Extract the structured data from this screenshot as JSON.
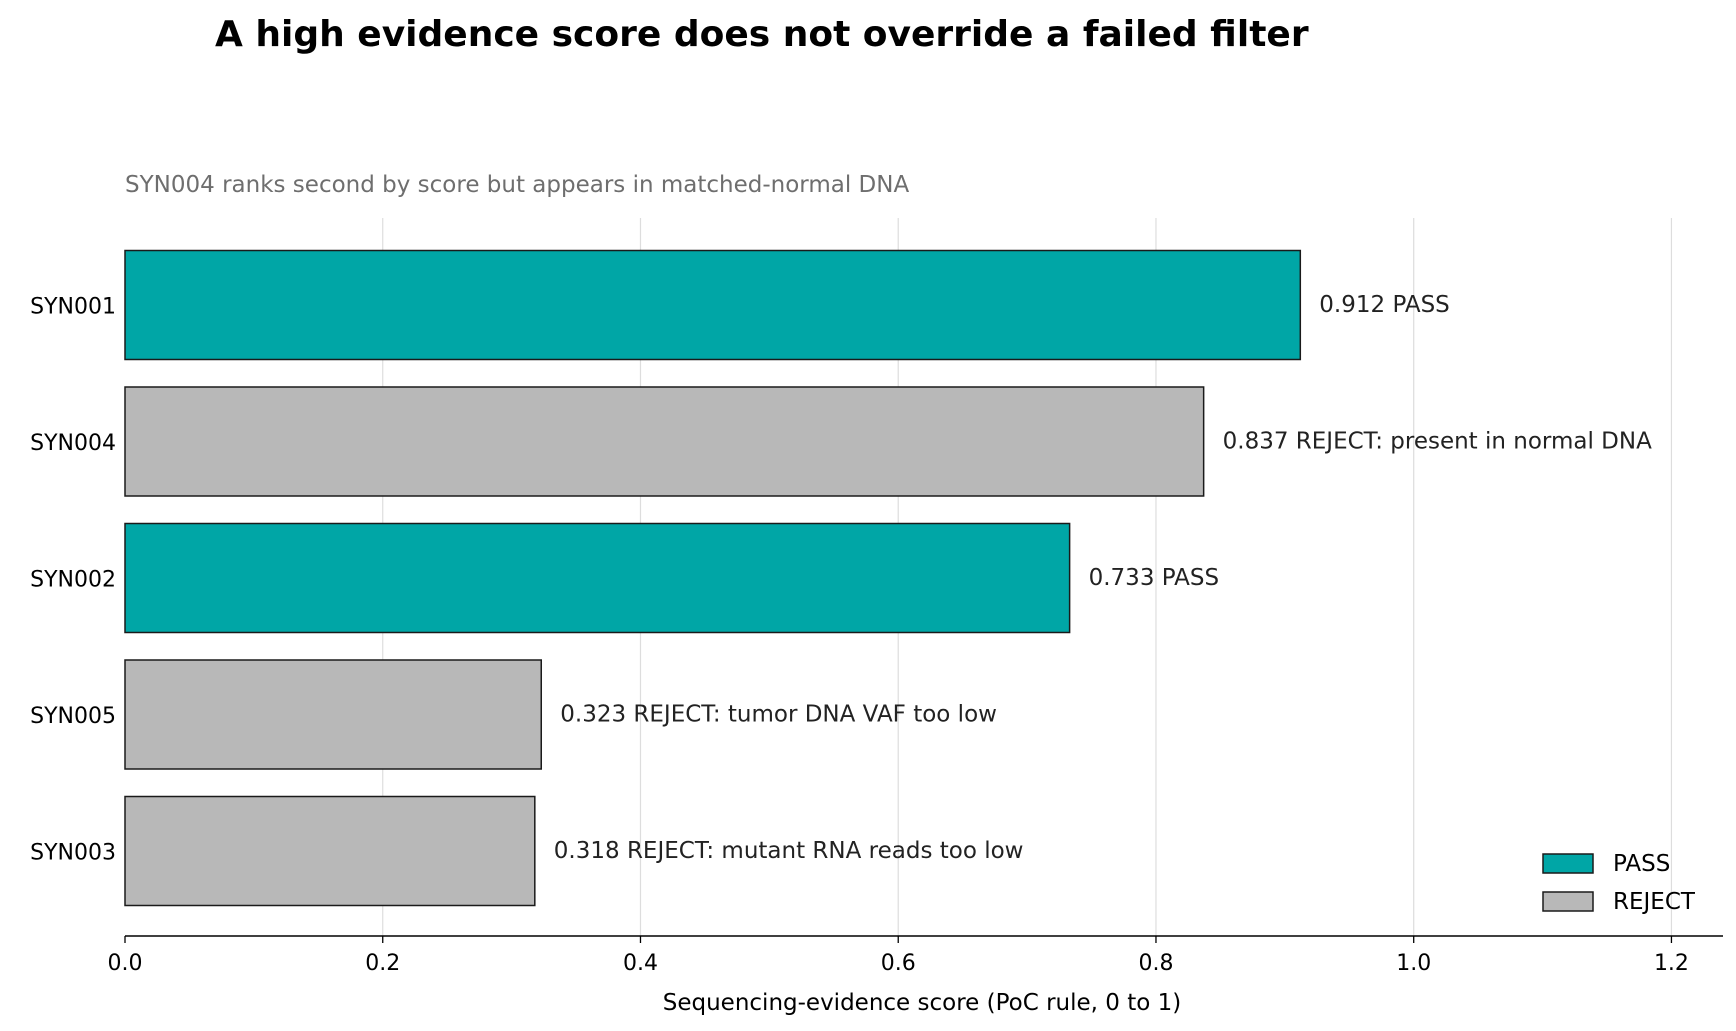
{
  "chart_data": {
    "type": "bar",
    "orientation": "horizontal",
    "title": "A high evidence score does not override a failed filter",
    "subtitle": "SYN004 ranks second by score but appears in matched-normal DNA",
    "xlabel": "Sequencing-evidence score (PoC rule, 0 to 1)",
    "ylabel": "",
    "xlim": [
      0,
      1.24
    ],
    "xticks": [
      0.0,
      0.2,
      0.4,
      0.6,
      0.8,
      1.0,
      1.2
    ],
    "xtick_labels": [
      "0.0",
      "0.2",
      "0.4",
      "0.6",
      "0.8",
      "1.0",
      "1.2"
    ],
    "grid": "vertical",
    "legend_position": "bottom-right",
    "categories": [
      "SYN001",
      "SYN004",
      "SYN002",
      "SYN005",
      "SYN003"
    ],
    "values": [
      0.912,
      0.837,
      0.733,
      0.323,
      0.318
    ],
    "status": [
      "PASS",
      "REJECT",
      "PASS",
      "REJECT",
      "REJECT"
    ],
    "data_labels": [
      "0.912  PASS",
      "0.837  REJECT: present in normal DNA",
      "0.733  PASS",
      "0.323  REJECT: tumor DNA VAF too low",
      "0.318  REJECT: mutant RNA reads too low"
    ],
    "legend": [
      {
        "name": "PASS",
        "color": "#00a6a6"
      },
      {
        "name": "REJECT",
        "color": "#b8b8b8"
      }
    ],
    "colors": {
      "PASS": "#00a6a6",
      "REJECT": "#b8b8b8",
      "edge": "#1a1a1a",
      "grid": "#dddddd"
    }
  }
}
